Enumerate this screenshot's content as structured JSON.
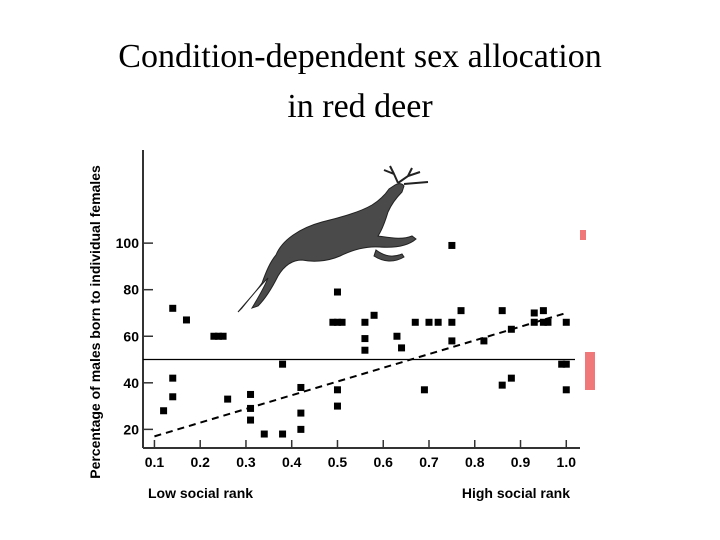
{
  "slide": {
    "title_line1": "Condition-dependent sex allocation",
    "title_line2": "in red deer"
  },
  "chart_data": {
    "type": "scatter",
    "title": "",
    "xlabel_left": "Low social rank",
    "xlabel_right": "High social rank",
    "ylabel": "Percentage of males born to individual females",
    "xlim": [
      0.075,
      1.03
    ],
    "ylim": [
      12,
      140
    ],
    "x_ticks": [
      "0.1",
      "0.2",
      "0.3",
      "0.4",
      "0.5",
      "0.6",
      "0.7",
      "0.8",
      "0.9",
      "1.0"
    ],
    "y_ticks": [
      "20",
      "40",
      "60",
      "80",
      "100"
    ],
    "reference_line_y": 50,
    "trend_line": {
      "x": [
        0.1,
        1.0
      ],
      "y": [
        17,
        70
      ],
      "style": "dashed"
    },
    "points": [
      {
        "x": 0.12,
        "y": 28
      },
      {
        "x": 0.14,
        "y": 34
      },
      {
        "x": 0.14,
        "y": 72
      },
      {
        "x": 0.14,
        "y": 42
      },
      {
        "x": 0.17,
        "y": 67
      },
      {
        "x": 0.23,
        "y": 60
      },
      {
        "x": 0.24,
        "y": 60
      },
      {
        "x": 0.25,
        "y": 60
      },
      {
        "x": 0.26,
        "y": 33
      },
      {
        "x": 0.31,
        "y": 35
      },
      {
        "x": 0.31,
        "y": 29
      },
      {
        "x": 0.31,
        "y": 24
      },
      {
        "x": 0.34,
        "y": 18
      },
      {
        "x": 0.38,
        "y": 18
      },
      {
        "x": 0.38,
        "y": 48
      },
      {
        "x": 0.42,
        "y": 38
      },
      {
        "x": 0.42,
        "y": 27
      },
      {
        "x": 0.42,
        "y": 20
      },
      {
        "x": 0.49,
        "y": 66
      },
      {
        "x": 0.5,
        "y": 79
      },
      {
        "x": 0.5,
        "y": 66
      },
      {
        "x": 0.5,
        "y": 37
      },
      {
        "x": 0.5,
        "y": 30
      },
      {
        "x": 0.51,
        "y": 66
      },
      {
        "x": 0.56,
        "y": 66
      },
      {
        "x": 0.56,
        "y": 59
      },
      {
        "x": 0.56,
        "y": 54
      },
      {
        "x": 0.58,
        "y": 69
      },
      {
        "x": 0.63,
        "y": 60
      },
      {
        "x": 0.64,
        "y": 55
      },
      {
        "x": 0.67,
        "y": 66
      },
      {
        "x": 0.69,
        "y": 37
      },
      {
        "x": 0.7,
        "y": 66
      },
      {
        "x": 0.72,
        "y": 66
      },
      {
        "x": 0.75,
        "y": 99
      },
      {
        "x": 0.75,
        "y": 66
      },
      {
        "x": 0.75,
        "y": 58
      },
      {
        "x": 0.77,
        "y": 71
      },
      {
        "x": 0.82,
        "y": 58
      },
      {
        "x": 0.86,
        "y": 71
      },
      {
        "x": 0.86,
        "y": 39
      },
      {
        "x": 0.88,
        "y": 63
      },
      {
        "x": 0.88,
        "y": 42
      },
      {
        "x": 0.93,
        "y": 70
      },
      {
        "x": 0.93,
        "y": 66
      },
      {
        "x": 0.95,
        "y": 71
      },
      {
        "x": 0.95,
        "y": 66
      },
      {
        "x": 0.96,
        "y": 66
      },
      {
        "x": 0.99,
        "y": 48
      },
      {
        "x": 1.0,
        "y": 66
      },
      {
        "x": 1.0,
        "y": 48
      },
      {
        "x": 1.0,
        "y": 37
      }
    ]
  },
  "colors": {
    "marker": "#000000",
    "axis": "#333333",
    "accent_red": "#f07878"
  }
}
